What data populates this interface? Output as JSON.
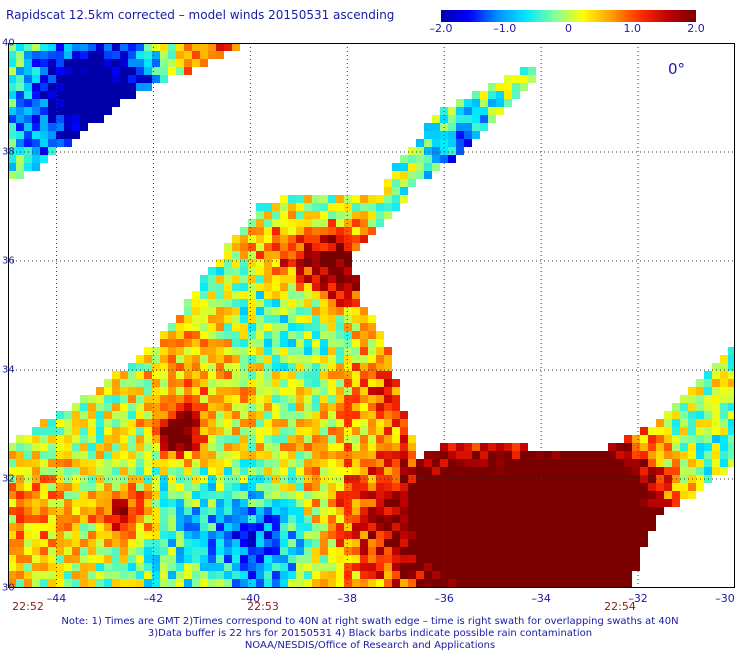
{
  "title": "Rapidscat 12.5km corrected – model winds 20150531 ascending",
  "colorbar": {
    "ticks": [
      "–2.0",
      "–1.0",
      "0",
      "1.0",
      "2.0"
    ],
    "tick_values": [
      -2.0,
      -1.0,
      0,
      1.0,
      2.0
    ],
    "range": [
      -2.0,
      2.0
    ],
    "colors": [
      "#0000a8",
      "#0000ff",
      "#0090ff",
      "#00e8ff",
      "#7fffa0",
      "#ffff00",
      "#ffa000",
      "#ff3000",
      "#c00000",
      "#7a0000"
    ]
  },
  "map": {
    "lon_range": [
      -45,
      -30
    ],
    "lat_range": [
      30,
      40
    ],
    "lat_labels": [
      "40",
      "38",
      "36",
      "34",
      "32",
      "30"
    ],
    "lat_values": [
      40,
      38,
      36,
      34,
      32,
      30
    ],
    "lon_labels": [
      "–44",
      "–42",
      "–40",
      "–38",
      "–36",
      "–34",
      "–32",
      "–30"
    ],
    "lon_values": [
      -44,
      -42,
      -40,
      -38,
      -36,
      -34,
      -32,
      -30
    ],
    "grid": "dotted",
    "mark": "0°"
  },
  "times": [
    {
      "label": "22:52"
    },
    {
      "label": "22:53"
    },
    {
      "label": "22:54"
    }
  ],
  "notes": [
    "Note: 1) Times are GMT 2)Times correspond to 40N at right swath edge – time is right swath for overlapping swaths at 40N",
    "3)Data buffer is 22 hrs for 20150531 4) Black barbs indicate possible rain contamination",
    "NOAA/NESDIS/Office of Research and Applications"
  ]
}
